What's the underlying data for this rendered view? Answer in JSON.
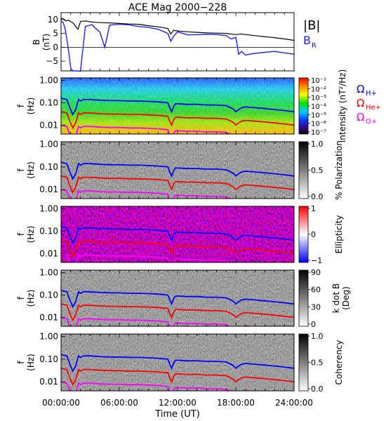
{
  "title": "ACE Mag 2000−228",
  "xlabel": "Time (UT)",
  "xticks": [
    "00:00:00",
    "06:00:00",
    "12:00:00",
    "18:00:00",
    "24:00:00"
  ],
  "colors": {
    "btotal": "#000000",
    "br": "#2020ff",
    "h_plus": "#0000ff",
    "he_plus": "#ff0000",
    "o_plus": "#ff00ff"
  },
  "chart_data": [
    {
      "type": "line",
      "panel": "field",
      "ylabel": "B (nT)",
      "ylabel_parts": [
        "B",
        "(nT)"
      ],
      "yticks": [
        "10",
        "5",
        "0",
        "−5"
      ],
      "ytick_values": [
        10,
        5,
        0,
        -5
      ],
      "ylim": [
        -8.5,
        12.5
      ],
      "xlim": [
        0,
        24
      ],
      "legend": [
        "|B|",
        "B"
      ],
      "legend_sub": "R",
      "series": [
        {
          "name": "|B|",
          "x": [
            0,
            0.25,
            0.5,
            0.75,
            1,
            1.25,
            1.5,
            1.75,
            2,
            2.25,
            2.5,
            3,
            3.5,
            4,
            5,
            6,
            7,
            8,
            9,
            10,
            11,
            11.3,
            11.6,
            12,
            13,
            14,
            15,
            16,
            17,
            17.7,
            18,
            18.3,
            18.5,
            19,
            20,
            21,
            22,
            23,
            24
          ],
          "y": [
            10.5,
            10.2,
            9.5,
            9.8,
            9.2,
            8.8,
            7.5,
            6.5,
            9.3,
            9.4,
            9.5,
            9.2,
            9,
            8.9,
            8.8,
            8.6,
            8.4,
            8.3,
            7.8,
            7.4,
            6.8,
            4.8,
            6.1,
            5.9,
            5.6,
            5.4,
            5.2,
            5.1,
            5,
            4.7,
            4.6,
            4.7,
            4.8,
            4.6,
            4.2,
            3.8,
            3.5,
            3,
            2.5
          ]
        },
        {
          "name": "B",
          "x": [
            0,
            0.2,
            0.4,
            0.6,
            0.8,
            1,
            1.2,
            1.5,
            2,
            2.5,
            3,
            3.2,
            3.5,
            4,
            4.5,
            5,
            6,
            7,
            8,
            9,
            10,
            11,
            11.3,
            11.6,
            12,
            13,
            14,
            15,
            16,
            17,
            17.5,
            18,
            18.3,
            18.6,
            19,
            19.5,
            20,
            21,
            22,
            23,
            24
          ],
          "y": [
            9.5,
            9,
            7,
            3,
            -2,
            -7.5,
            -8.5,
            -8.5,
            -8.6,
            7.5,
            8,
            8.2,
            7,
            5.5,
            0,
            8,
            8.3,
            8.1,
            7.5,
            7.2,
            6.5,
            5,
            2.2,
            4,
            5.6,
            4.5,
            4.5,
            4.7,
            4.6,
            4.2,
            3,
            3.6,
            -2.5,
            -1.5,
            -2.8,
            -2.4,
            -2.2,
            -1.8,
            -1.5,
            -2,
            -2.5
          ]
        }
      ]
    },
    {
      "type": "heatmap",
      "panel": "power",
      "ylabel": "f (Hz)",
      "yticks": [
        "1.00",
        "0.10",
        "0.01"
      ],
      "ytick_values": [
        1,
        0.1,
        0.01
      ],
      "yscale": "log",
      "colorbar_label": "Intensity (nT²/Hz)",
      "colorbar_ticks": [
        "10⁻¹",
        "10⁻²",
        "10⁻³",
        "10⁻⁴",
        "10⁻⁵",
        "10⁻⁶",
        "10⁻⁷"
      ],
      "colorbar_scale": "log",
      "legend": [
        "ΩH+",
        "ΩHe+",
        "ΩO+"
      ]
    },
    {
      "type": "heatmap",
      "panel": "polarization",
      "ylabel": "f (Hz)",
      "yticks": [
        "1.00",
        "0.10",
        "0.01"
      ],
      "ytick_values": [
        1,
        0.1,
        0.01
      ],
      "yscale": "log",
      "colorbar_label": "% Polarization",
      "colorbar_ticks": [
        "1.0",
        "0.5",
        "0.0"
      ]
    },
    {
      "type": "heatmap",
      "panel": "ellipticity",
      "ylabel": "f (Hz)",
      "yticks": [
        "1.00",
        "0.10",
        "0.01"
      ],
      "ytick_values": [
        1,
        0.1,
        0.01
      ],
      "yscale": "log",
      "colorbar_label": "Ellipticity",
      "colorbar_ticks": [
        "1",
        "0",
        "−1"
      ]
    },
    {
      "type": "heatmap",
      "panel": "kdotb",
      "ylabel": "f (Hz)",
      "yticks": [
        "1.00",
        "0.10",
        "0.01"
      ],
      "ytick_values": [
        1,
        0.1,
        0.01
      ],
      "yscale": "log",
      "colorbar_label": "k dot B (Deg)",
      "colorbar_label_parts": [
        "k dot B",
        "(Deg)"
      ],
      "colorbar_ticks": [
        "90",
        "60",
        "30",
        "0"
      ]
    },
    {
      "type": "heatmap",
      "panel": "coherency",
      "ylabel": "f (Hz)",
      "yticks": [
        "1.00",
        "0.10",
        "0.01"
      ],
      "ytick_values": [
        1,
        0.1,
        0.01
      ],
      "yscale": "log",
      "colorbar_label": "Coherency",
      "colorbar_ticks": [
        "1.0",
        "0.5",
        "0.0"
      ]
    }
  ],
  "gyrofrequency": {
    "x": [
      0,
      0.3,
      0.6,
      0.9,
      1.2,
      1.5,
      1.8,
      2,
      2.3,
      2.6,
      3,
      4,
      5,
      6,
      7,
      8,
      9,
      10,
      11,
      11.2,
      11.4,
      11.6,
      11.8,
      12,
      13,
      14,
      15,
      16,
      17,
      17.5,
      17.8,
      18,
      18.3,
      18.6,
      19,
      20,
      21,
      22,
      23,
      24
    ],
    "h_plus_hz": [
      0.16,
      0.15,
      0.14,
      0.06,
      0.03,
      0.05,
      0.14,
      0.12,
      0.14,
      0.14,
      0.14,
      0.13,
      0.125,
      0.125,
      0.12,
      0.12,
      0.115,
      0.11,
      0.1,
      0.06,
      0.04,
      0.07,
      0.09,
      0.09,
      0.085,
      0.085,
      0.08,
      0.08,
      0.075,
      0.06,
      0.05,
      0.04,
      0.05,
      0.06,
      0.065,
      0.06,
      0.055,
      0.05,
      0.045,
      0.04
    ]
  }
}
